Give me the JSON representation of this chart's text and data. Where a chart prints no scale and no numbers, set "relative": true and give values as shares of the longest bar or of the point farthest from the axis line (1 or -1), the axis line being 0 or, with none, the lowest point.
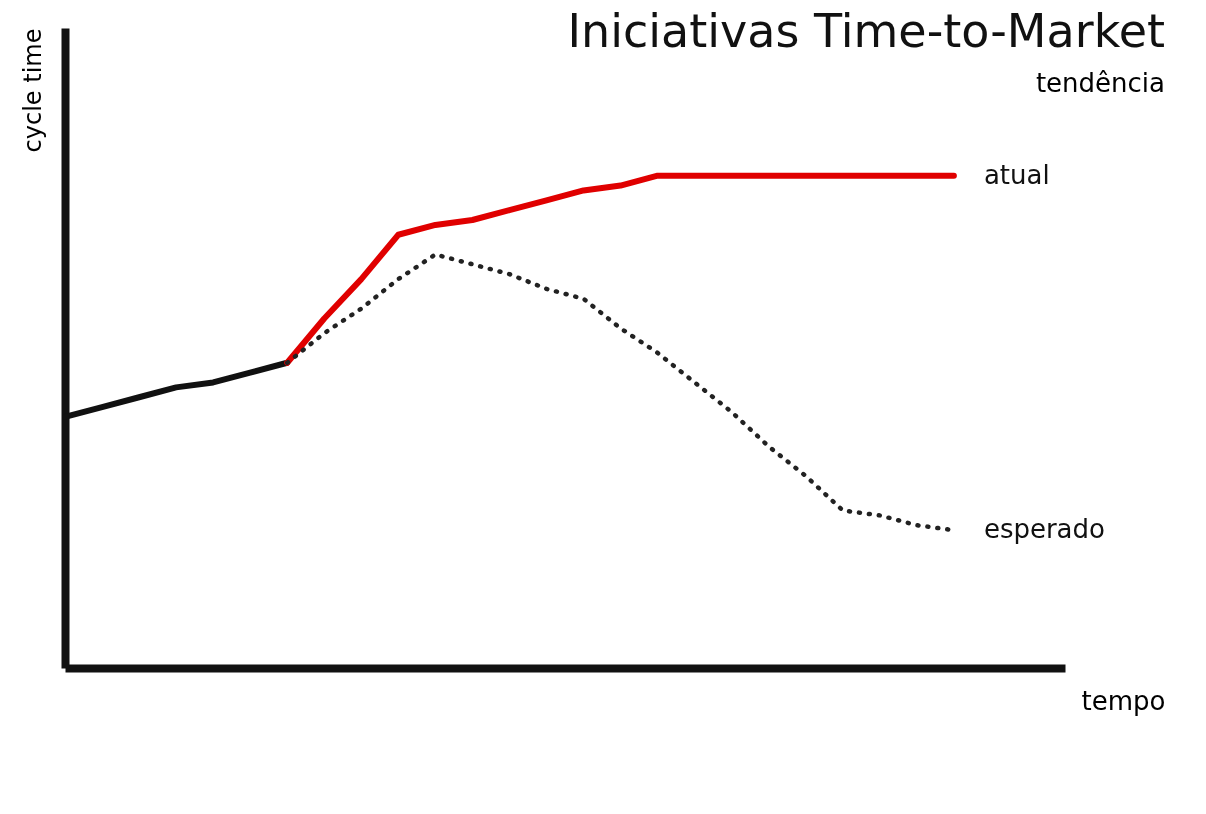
{
  "chart_data": {
    "type": "line",
    "title": "Iniciativas Time-to-Market",
    "xlabel": "tempo",
    "ylabel": "cycle time",
    "legend_title": "tendência",
    "relative": true,
    "tick_labels": false,
    "grid": false,
    "marker": "none",
    "categories": [
      null,
      null,
      null,
      null,
      null,
      null,
      null,
      null,
      null,
      null,
      null,
      null,
      null,
      null,
      null,
      null,
      null,
      null,
      null,
      null,
      null,
      null,
      null,
      null,
      null,
      null,
      null,
      null
    ],
    "series": [
      {
        "color": "#111111",
        "values": [
          0.51,
          0.53,
          0.55,
          0.57,
          0.58,
          0.6,
          0.62,
          null,
          null,
          null,
          null,
          null,
          null,
          null,
          null,
          null,
          null,
          null,
          null,
          null,
          null,
          null,
          null,
          null,
          null,
          null,
          null,
          null
        ],
        "line_style": "solid"
      },
      {
        "name": "atual",
        "color": "#e00000",
        "values": [
          null,
          null,
          null,
          null,
          null,
          null,
          0.62,
          0.71,
          0.79,
          0.88,
          0.9,
          0.91,
          0.93,
          0.95,
          0.97,
          0.98,
          1,
          1,
          1,
          1,
          1,
          1,
          1,
          1,
          1,
          null,
          null,
          null
        ],
        "line_style": "solid"
      },
      {
        "name": "esperado",
        "color": "#222222",
        "values": [
          null,
          null,
          null,
          null,
          null,
          null,
          0.62,
          0.68,
          0.73,
          0.79,
          0.84,
          0.82,
          0.8,
          0.77,
          0.75,
          0.69,
          0.64,
          0.58,
          0.52,
          0.45,
          0.39,
          0.32,
          0.31,
          0.29,
          0.28,
          null,
          null,
          null
        ],
        "line_style": "dotted"
      }
    ]
  }
}
